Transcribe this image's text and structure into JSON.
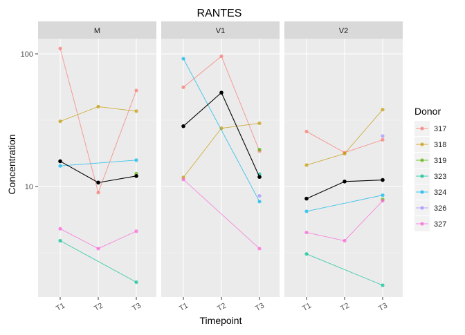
{
  "chart_data": {
    "type": "line",
    "title": "RANTES",
    "xlabel": "Timepoint",
    "ylabel": "Concentration",
    "y_scale": "log10",
    "y_ticks": [
      10,
      100
    ],
    "y_tick_labels": [
      "10",
      "100"
    ],
    "categories": [
      "T1",
      "T2",
      "T3"
    ],
    "legend": {
      "title": "Donor",
      "position": "right",
      "entries": [
        {
          "name": "317",
          "color": "#F8766D"
        },
        {
          "name": "318",
          "color": "#C49A00"
        },
        {
          "name": "319",
          "color": "#53B400"
        },
        {
          "name": "323",
          "color": "#00C094"
        },
        {
          "name": "324",
          "color": "#00B6EB"
        },
        {
          "name": "326",
          "color": "#A58AFF"
        },
        {
          "name": "327",
          "color": "#FB61D7"
        }
      ]
    },
    "mean_color": "#000000",
    "panels": [
      {
        "name": "M",
        "series": [
          {
            "name": "317",
            "values": [
              110,
              9.0,
              53
            ]
          },
          {
            "name": "318",
            "values": [
              31,
              40,
              37
            ]
          },
          {
            "name": "319",
            "values": [
              null,
              null,
              12.5
            ]
          },
          {
            "name": "323",
            "values": [
              3.9,
              null,
              1.9
            ]
          },
          {
            "name": "324",
            "values": [
              14.3,
              null,
              15.8
            ]
          },
          {
            "name": "327",
            "values": [
              4.8,
              3.4,
              4.6
            ]
          }
        ],
        "mean": [
          15.5,
          10.7,
          12.0
        ]
      },
      {
        "name": "V1",
        "series": [
          {
            "name": "317",
            "values": [
              56,
              96,
              18.5
            ]
          },
          {
            "name": "318",
            "values": [
              11.7,
              27.5,
              30
            ]
          },
          {
            "name": "319",
            "values": [
              null,
              null,
              19
            ]
          },
          {
            "name": "323",
            "values": [
              null,
              null,
              12.4
            ]
          },
          {
            "name": "324",
            "values": [
              92,
              null,
              7.7
            ]
          },
          {
            "name": "326",
            "values": [
              null,
              null,
              8.5
            ]
          },
          {
            "name": "327",
            "values": [
              11.3,
              null,
              3.4
            ]
          }
        ],
        "mean": [
          28.5,
          51,
          11.8
        ]
      },
      {
        "name": "V2",
        "series": [
          {
            "name": "317",
            "values": [
              26,
              18,
              22.5
            ]
          },
          {
            "name": "318",
            "values": [
              14.5,
              17.7,
              38
            ]
          },
          {
            "name": "319",
            "values": [
              null,
              null,
              8.0
            ]
          },
          {
            "name": "323",
            "values": [
              3.1,
              null,
              1.8
            ]
          },
          {
            "name": "324",
            "values": [
              6.5,
              null,
              8.6
            ]
          },
          {
            "name": "326",
            "values": [
              null,
              null,
              24
            ]
          },
          {
            "name": "327",
            "values": [
              4.5,
              3.9,
              7.8
            ]
          }
        ],
        "mean": [
          8.1,
          10.9,
          11.2
        ]
      }
    ]
  }
}
